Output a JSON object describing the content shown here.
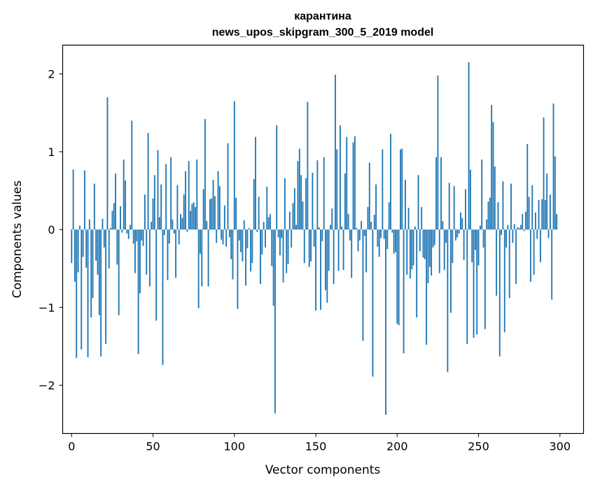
{
  "chart_data": {
    "type": "bar",
    "title": "карантина",
    "subtitle": "news_upos_skipgram_300_5_2019 model",
    "xlabel": "Vector components",
    "ylabel": "Components values",
    "xlim": [
      -5.5,
      314.5
    ],
    "ylim": [
      -2.62,
      2.37
    ],
    "xticks": [
      0,
      50,
      100,
      150,
      200,
      250,
      300
    ],
    "yticks": [
      -2,
      -1,
      0,
      1,
      2
    ],
    "ytick_labels": [
      "−2",
      "−1",
      "0",
      "1",
      "2"
    ],
    "grid": false,
    "legend": "none",
    "bar_color": "#1f77b4",
    "x": "0..299",
    "values": [
      -0.43,
      0.77,
      -0.67,
      -1.65,
      -0.55,
      0.05,
      -1.54,
      -0.35,
      0.76,
      -0.49,
      -1.64,
      0.13,
      -1.13,
      -0.88,
      0.59,
      -0.4,
      -0.58,
      -1.1,
      -1.63,
      0.14,
      -0.23,
      -1.47,
      1.7,
      -0.5,
      0.02,
      0.24,
      0.34,
      0.72,
      -0.45,
      -1.1,
      0.3,
      -0.04,
      0.9,
      0.63,
      -0.05,
      -0.12,
      0.06,
      1.4,
      -0.18,
      -0.56,
      -0.15,
      -1.6,
      -0.82,
      -0.14,
      -0.21,
      0.45,
      -0.58,
      1.24,
      -0.73,
      0.1,
      0.4,
      0.7,
      -1.17,
      1.02,
      0.16,
      0.58,
      -1.74,
      -0.07,
      0.84,
      -0.65,
      -0.18,
      0.93,
      0.13,
      -0.05,
      -0.62,
      0.57,
      -0.19,
      0.2,
      0.15,
      0.45,
      0.75,
      -0.03,
      0.88,
      0.24,
      0.33,
      0.35,
      0.29,
      0.9,
      -1.01,
      -0.31,
      -0.73,
      0.52,
      1.42,
      0.11,
      -0.73,
      0.39,
      0.4,
      0.64,
      0.43,
      -0.17,
      0.75,
      0.56,
      -0.13,
      -0.19,
      0.31,
      -0.22,
      1.11,
      -0.1,
      -0.38,
      -0.64,
      1.65,
      0.41,
      -1.02,
      -0.14,
      -0.29,
      -0.41,
      0.12,
      -0.72,
      -0.24,
      0.02,
      -0.54,
      -0.43,
      0.65,
      1.19,
      -0.03,
      0.42,
      -0.7,
      -0.32,
      0.1,
      -0.23,
      0.55,
      0.16,
      0.2,
      -0.47,
      -0.98,
      -2.36,
      1.34,
      -0.1,
      -0.33,
      -0.11,
      -0.68,
      0.66,
      -0.56,
      -0.44,
      0.23,
      -0.23,
      0.34,
      0.53,
      0.06,
      0.88,
      1.04,
      0.7,
      0.36,
      -0.43,
      0.66,
      1.64,
      -0.48,
      -0.41,
      0.73,
      -0.22,
      -1.04,
      0.89,
      0.03,
      -1.03,
      -0.15,
      0.93,
      -0.78,
      -0.94,
      -0.53,
      0.06,
      0.27,
      -0.7,
      1.99,
      1.03,
      -0.53,
      1.34,
      0.04,
      -0.52,
      0.72,
      1.19,
      0.2,
      -0.14,
      -0.62,
      1.12,
      1.2,
      0.02,
      -0.28,
      -0.14,
      0.11,
      -1.43,
      -0.08,
      -0.55,
      0.29,
      0.86,
      0.1,
      -1.89,
      0.19,
      0.58,
      -0.22,
      -0.35,
      -0.11,
      1.03,
      -0.12,
      -2.38,
      -0.25,
      0.35,
      1.23,
      -0.04,
      -0.31,
      -0.29,
      -1.21,
      -1.23,
      1.03,
      1.04,
      -1.59,
      0.64,
      -0.58,
      0.28,
      -0.63,
      -0.51,
      -0.46,
      0.04,
      -1.13,
      0.7,
      -0.28,
      0.29,
      -0.36,
      -0.38,
      -1.48,
      -0.69,
      -0.48,
      -0.59,
      -0.23,
      -0.2,
      0.93,
      1.98,
      -0.56,
      0.93,
      0.11,
      -0.52,
      -0.17,
      -1.83,
      0.6,
      -1.07,
      -0.43,
      0.56,
      -0.14,
      -0.1,
      -0.05,
      0.22,
      0.15,
      -0.39,
      0.52,
      -1.47,
      2.15,
      0.77,
      -0.42,
      -1.39,
      -0.26,
      -1.35,
      -0.46,
      0.05,
      0.9,
      -0.23,
      -1.28,
      0.13,
      0.36,
      0.41,
      1.6,
      1.38,
      0.81,
      -0.85,
      0.35,
      -1.63,
      -0.07,
      0.62,
      -1.32,
      -0.23,
      0.06,
      -0.88,
      0.59,
      -0.17,
      0.07,
      -0.7,
      0.03,
      0.02,
      0.06,
      0.2,
      -0.02,
      0.23,
      1.1,
      0.42,
      -0.67,
      0.57,
      -0.58,
      0.22,
      -0.12,
      0.38,
      -0.42,
      0.39,
      1.44,
      0.38,
      0.72,
      -0.11,
      0.45,
      -0.9,
      1.62,
      0.94,
      0.2
    ]
  }
}
